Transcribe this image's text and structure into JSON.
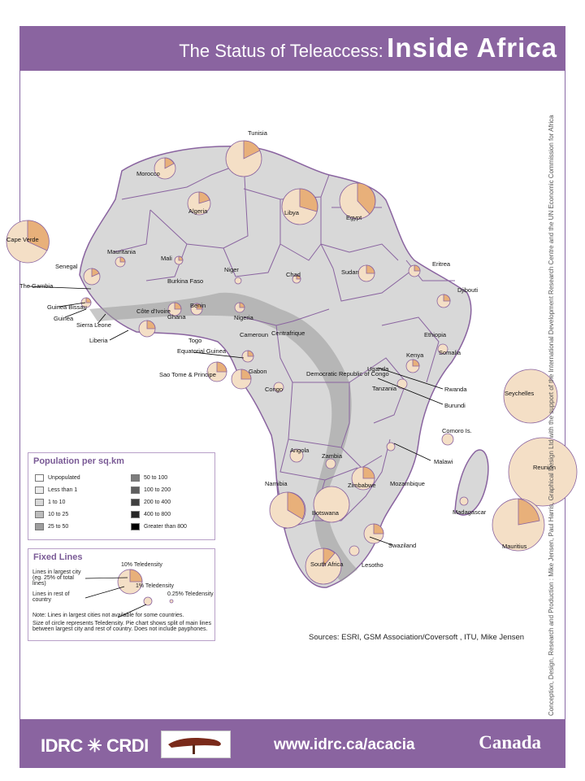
{
  "header": {
    "title_a": "The Status of Teleaccess:",
    "title_b": "Inside Africa"
  },
  "credits": "Conception, Design, Research and Production : Mike Jensen, Paul Harris, Graphical Design Ltd with the support of the International Development Research Centre and the UN Economic Commission for Africa",
  "countries": [
    "Tunisia",
    "Morocco",
    "Algeria",
    "Libya",
    "Egypt",
    "Cape Verde",
    "Mauritania",
    "Mali",
    "Niger",
    "Chad",
    "Sudan",
    "Eritrea",
    "Senegal",
    "The Gambia",
    "Guinea Bissau",
    "Guinea",
    "Sierra Leone",
    "Liberia",
    "Burkina Faso",
    "Côte d'Ivoire",
    "Ghana",
    "Benin",
    "Nigeria",
    "Djibouti",
    "Ethiopia",
    "Somalia",
    "Togo",
    "Cameroun",
    "Centrafrique",
    "Equatorial Guinea",
    "Sao Tome & Principe",
    "Gabon",
    "Congo",
    "Democratic Republic of Congo",
    "Uganda",
    "Kenya",
    "Rwanda",
    "Burundi",
    "Tanzania",
    "Seychelles",
    "Comoro Is.",
    "Malawi",
    "Angola",
    "Zambia",
    "Reunion",
    "Namibia",
    "Zimbabwe",
    "Mozambique",
    "Madagascar",
    "Botswana",
    "Mauritius",
    "Swaziland",
    "South Africa",
    "Lesotho"
  ],
  "legend_population": {
    "title": "Population per sq.km",
    "items": [
      "Unpopulated",
      "Less than 1",
      "1 to 10",
      "10 to 25",
      "25 to 50",
      "50 to 100",
      "100 to 200",
      "200 to 400",
      "400 to 800",
      "Greater than 800"
    ],
    "colors": [
      "#ffffff",
      "#ececec",
      "#d8d8d8",
      "#bdbdbd",
      "#9e9e9e",
      "#7d7d7d",
      "#5e5e5e",
      "#404040",
      "#262626",
      "#000000"
    ]
  },
  "legend_fixed": {
    "title": "Fixed Lines",
    "largest_city": "Lines in largest city (eg. 25% of total lines)",
    "rest": "Lines in rest of country",
    "tele10": "10% Teledensity",
    "tele1": "1% Teledensity",
    "tele025": "0.25% Teledensity",
    "note1": "Note: Lines in largest cities not available for some countries.",
    "note2": "Size of circle represents Teledensity. Pie chart shows split of main lines between largest city and rest of country. Does not include payphones."
  },
  "sources": "Sources: ESRI, GSM Association/Coversoft , ITU, Mike Jensen",
  "footer": {
    "idrc": "IDRC",
    "crdi": "CRDI",
    "url": "www.idrc.ca/acacia",
    "canada": "Canada"
  },
  "colors": {
    "purple": "#8a64a0",
    "pie_light": "#f4dfc6",
    "pie_dark": "#e8b07a"
  }
}
